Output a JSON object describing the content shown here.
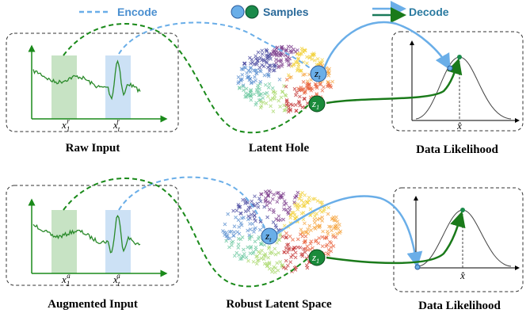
{
  "legend": {
    "encode": "Encode",
    "samples": "Samples",
    "decode": "Decode"
  },
  "rows": [
    {
      "input_label": "Raw Input",
      "latent_label": "Latent Hole",
      "likelihood_label": "Data Likelihood",
      "marks": [
        {
          "base": "x",
          "sub": "1",
          "sup": "r"
        },
        {
          "base": "x",
          "sub": "t",
          "sup": "r"
        }
      ],
      "samples": [
        {
          "base": "z",
          "sub": "t"
        },
        {
          "base": "z",
          "sub": "1"
        }
      ],
      "xhat": "x̂"
    },
    {
      "input_label": "Augmented Input",
      "latent_label": "Robust Latent Space",
      "likelihood_label": "Data Likelihood",
      "marks": [
        {
          "base": "x",
          "sub": "1",
          "sup": "a"
        },
        {
          "base": "x",
          "sub": "t",
          "sup": "a"
        }
      ],
      "samples": [
        {
          "base": "z",
          "sub": "t"
        },
        {
          "base": "z",
          "sub": "1"
        }
      ],
      "xhat": "x̂"
    }
  ]
}
